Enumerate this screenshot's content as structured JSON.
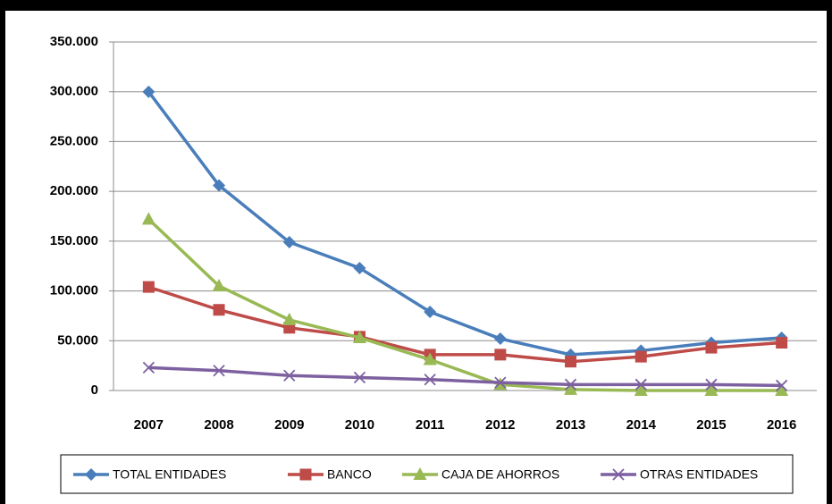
{
  "chart_data": {
    "type": "line",
    "categories": [
      "2007",
      "2008",
      "2009",
      "2010",
      "2011",
      "2012",
      "2013",
      "2014",
      "2015",
      "2016"
    ],
    "series": [
      {
        "name": "TOTAL ENTIDADES",
        "color": "#4a7ebb",
        "marker": "diamond",
        "values": [
          300000,
          206000,
          149000,
          123000,
          79000,
          52000,
          36000,
          40000,
          48000,
          53000
        ]
      },
      {
        "name": "BANCO",
        "color": "#be4b48",
        "marker": "square",
        "values": [
          104000,
          81000,
          63000,
          54000,
          36000,
          36000,
          29000,
          34000,
          43000,
          48000
        ]
      },
      {
        "name": "CAJA DE AHORROS",
        "color": "#98b954",
        "marker": "triangle",
        "values": [
          172000,
          105000,
          71000,
          53000,
          31000,
          6000,
          1000,
          0,
          0,
          0
        ]
      },
      {
        "name": "OTRAS ENTIDADES",
        "color": "#7d60a0",
        "marker": "x",
        "values": [
          23000,
          20000,
          15000,
          13000,
          11000,
          8000,
          6000,
          6000,
          6000,
          5000
        ]
      }
    ],
    "ylim": [
      0,
      350000
    ],
    "yticks": [
      0,
      {
        "value": 50000,
        "label": "50.000"
      },
      {
        "value": 100000,
        "label": "100.000"
      },
      {
        "value": 150000,
        "label": "150.000"
      },
      {
        "value": 200000,
        "label": "200.000"
      },
      {
        "value": 250000,
        "label": "250.000"
      },
      {
        "value": 300000,
        "label": "300.000"
      },
      {
        "value": 350000,
        "label": "350.000"
      }
    ],
    "grid": true,
    "legend": "bottom"
  }
}
